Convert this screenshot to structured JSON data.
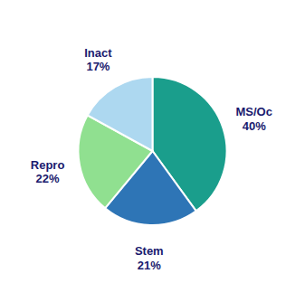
{
  "chart_data": {
    "type": "pie",
    "categories": [
      "MS/Oc",
      "Stem",
      "Repro",
      "Inact"
    ],
    "values": [
      40,
      21,
      22,
      17
    ],
    "value_labels": [
      "40%",
      "21%",
      "22%",
      "17%"
    ],
    "colors": [
      "#1a9e8c",
      "#2e75b6",
      "#90e090",
      "#add8f0"
    ],
    "data_labels": true
  }
}
